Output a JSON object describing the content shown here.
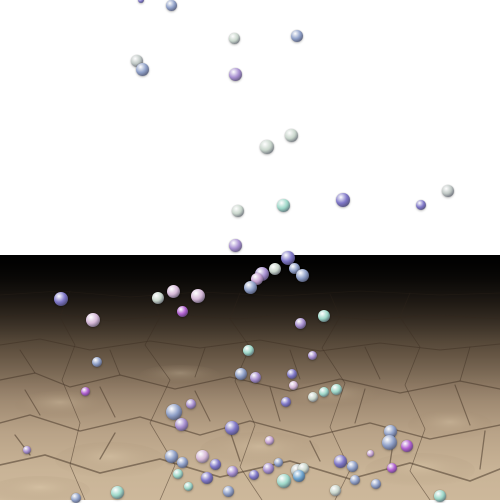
{
  "scene": {
    "sky_color": "#ffffff",
    "floor_texture": "cracked-stone-pavement",
    "particle_shape": "sphere",
    "particle_palette": [
      "#8fa0c8",
      "#7f77c8",
      "#a78fd0",
      "#c9d6cc",
      "#9ed8c9",
      "#6fd2c0",
      "#c8a5d4",
      "#d6b9d8",
      "#bfc7c4",
      "#b05fd0",
      "#6fa6d0"
    ]
  }
}
